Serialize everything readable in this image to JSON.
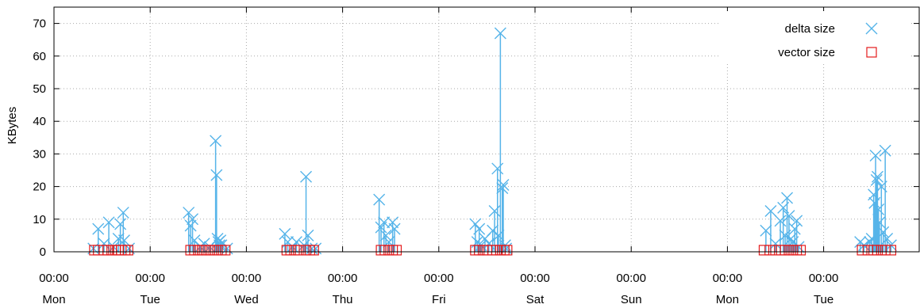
{
  "chart_data": {
    "type": "scatter",
    "title": "",
    "ylabel": "KBytes",
    "xlabel": "",
    "ylim": [
      0,
      75
    ],
    "yticks": [
      0,
      10,
      20,
      30,
      40,
      50,
      60,
      70
    ],
    "xlim": [
      0,
      9
    ],
    "xticks": [
      {
        "x": 0,
        "time": "00:00",
        "day": "Mon"
      },
      {
        "x": 1,
        "time": "00:00",
        "day": "Tue"
      },
      {
        "x": 2,
        "time": "00:00",
        "day": "Wed"
      },
      {
        "x": 3,
        "time": "00:00",
        "day": "Thu"
      },
      {
        "x": 4,
        "time": "00:00",
        "day": "Fri"
      },
      {
        "x": 5,
        "time": "00:00",
        "day": "Sat"
      },
      {
        "x": 6,
        "time": "00:00",
        "day": "Sun"
      },
      {
        "x": 7,
        "time": "00:00",
        "day": "Mon"
      },
      {
        "x": 8,
        "time": "00:00",
        "day": "Tue"
      }
    ],
    "grid": true,
    "legend_position": "top-right",
    "series": [
      {
        "name": "delta size",
        "marker": "cross",
        "impulses": true,
        "color": "#56b4e9",
        "points": [
          [
            0.41,
            1.0
          ],
          [
            0.46,
            7.0
          ],
          [
            0.52,
            2.5
          ],
          [
            0.57,
            9.0
          ],
          [
            0.62,
            1.5
          ],
          [
            0.67,
            4.0
          ],
          [
            0.69,
            8.5
          ],
          [
            0.72,
            12.0
          ],
          [
            0.73,
            3.5
          ],
          [
            0.78,
            1.0
          ],
          [
            1.4,
            12.0
          ],
          [
            1.42,
            8.0
          ],
          [
            1.44,
            10.0
          ],
          [
            1.46,
            3.5
          ],
          [
            1.52,
            1.5
          ],
          [
            1.56,
            2.5
          ],
          [
            1.62,
            1.5
          ],
          [
            1.68,
            34.0
          ],
          [
            1.69,
            23.5
          ],
          [
            1.7,
            4.0
          ],
          [
            1.71,
            3.0
          ],
          [
            1.72,
            2.0
          ],
          [
            1.73,
            3.5
          ],
          [
            1.74,
            2.0
          ],
          [
            1.8,
            1.0
          ],
          [
            2.4,
            5.5
          ],
          [
            2.43,
            3.0
          ],
          [
            2.48,
            1.5
          ],
          [
            2.52,
            3.0
          ],
          [
            2.6,
            2.0
          ],
          [
            2.62,
            23.0
          ],
          [
            2.64,
            5.0
          ],
          [
            2.68,
            1.0
          ],
          [
            2.72,
            1.0
          ],
          [
            3.38,
            16.0
          ],
          [
            3.4,
            7.5
          ],
          [
            3.43,
            9.0
          ],
          [
            3.45,
            5.0
          ],
          [
            3.48,
            3.0
          ],
          [
            3.52,
            9.0
          ],
          [
            3.54,
            7.0
          ],
          [
            4.38,
            8.5
          ],
          [
            4.4,
            3.0
          ],
          [
            4.42,
            7.0
          ],
          [
            4.44,
            2.0
          ],
          [
            4.48,
            4.0
          ],
          [
            4.52,
            2.5
          ],
          [
            4.56,
            6.5
          ],
          [
            4.58,
            12.5
          ],
          [
            4.61,
            25.5
          ],
          [
            4.62,
            5.0
          ],
          [
            4.64,
            67.0
          ],
          [
            4.66,
            19.5
          ],
          [
            4.67,
            20.5
          ],
          [
            4.69,
            2.0
          ],
          [
            4.7,
            1.0
          ],
          [
            7.4,
            6.5
          ],
          [
            7.45,
            12.5
          ],
          [
            7.5,
            2.5
          ],
          [
            7.55,
            9.5
          ],
          [
            7.58,
            13.5
          ],
          [
            7.6,
            5.0
          ],
          [
            7.62,
            16.5
          ],
          [
            7.64,
            11.0
          ],
          [
            7.66,
            4.0
          ],
          [
            7.68,
            3.0
          ],
          [
            7.7,
            7.0
          ],
          [
            7.72,
            9.5
          ],
          [
            7.74,
            1.5
          ],
          [
            8.38,
            3.0
          ],
          [
            8.42,
            2.0
          ],
          [
            8.48,
            3.0
          ],
          [
            8.5,
            4.0
          ],
          [
            8.52,
            17.5
          ],
          [
            8.53,
            15.0
          ],
          [
            8.54,
            29.5
          ],
          [
            8.55,
            22.0
          ],
          [
            8.56,
            23.0
          ],
          [
            8.57,
            13.0
          ],
          [
            8.58,
            9.0
          ],
          [
            8.6,
            20.0
          ],
          [
            8.62,
            6.0
          ],
          [
            8.64,
            31.0
          ],
          [
            8.66,
            4.0
          ],
          [
            8.7,
            2.0
          ]
        ]
      },
      {
        "name": "vector size",
        "marker": "square",
        "impulses": false,
        "color": "#e41a1c",
        "points": [
          [
            0.42,
            0.5
          ],
          [
            0.46,
            0.5
          ],
          [
            0.52,
            0.5
          ],
          [
            0.56,
            0.5
          ],
          [
            0.6,
            0.5
          ],
          [
            0.64,
            0.5
          ],
          [
            0.67,
            0.5
          ],
          [
            0.7,
            0.5
          ],
          [
            0.74,
            0.5
          ],
          [
            0.77,
            0.5
          ],
          [
            1.42,
            0.5
          ],
          [
            1.46,
            0.5
          ],
          [
            1.5,
            0.5
          ],
          [
            1.54,
            0.5
          ],
          [
            1.58,
            0.5
          ],
          [
            1.62,
            0.5
          ],
          [
            1.66,
            0.5
          ],
          [
            1.7,
            0.5
          ],
          [
            1.74,
            0.5
          ],
          [
            1.78,
            0.5
          ],
          [
            2.42,
            0.5
          ],
          [
            2.46,
            0.5
          ],
          [
            2.5,
            0.5
          ],
          [
            2.54,
            0.5
          ],
          [
            2.62,
            0.5
          ],
          [
            2.66,
            0.5
          ],
          [
            2.7,
            0.5
          ],
          [
            3.4,
            0.5
          ],
          [
            3.44,
            0.5
          ],
          [
            3.48,
            0.5
          ],
          [
            3.52,
            0.5
          ],
          [
            3.56,
            0.5
          ],
          [
            4.38,
            0.5
          ],
          [
            4.42,
            0.5
          ],
          [
            4.46,
            0.5
          ],
          [
            4.5,
            0.5
          ],
          [
            4.56,
            0.5
          ],
          [
            4.6,
            0.5
          ],
          [
            4.64,
            0.5
          ],
          [
            4.68,
            0.5
          ],
          [
            4.71,
            0.5
          ],
          [
            7.38,
            0.5
          ],
          [
            7.44,
            0.5
          ],
          [
            7.5,
            0.5
          ],
          [
            7.56,
            0.5
          ],
          [
            7.6,
            0.5
          ],
          [
            7.64,
            0.5
          ],
          [
            7.68,
            0.5
          ],
          [
            7.72,
            0.5
          ],
          [
            7.76,
            0.5
          ],
          [
            8.4,
            0.5
          ],
          [
            8.46,
            0.5
          ],
          [
            8.52,
            0.5
          ],
          [
            8.56,
            0.5
          ],
          [
            8.6,
            0.5
          ],
          [
            8.64,
            0.5
          ],
          [
            8.7,
            0.5
          ]
        ]
      }
    ]
  }
}
